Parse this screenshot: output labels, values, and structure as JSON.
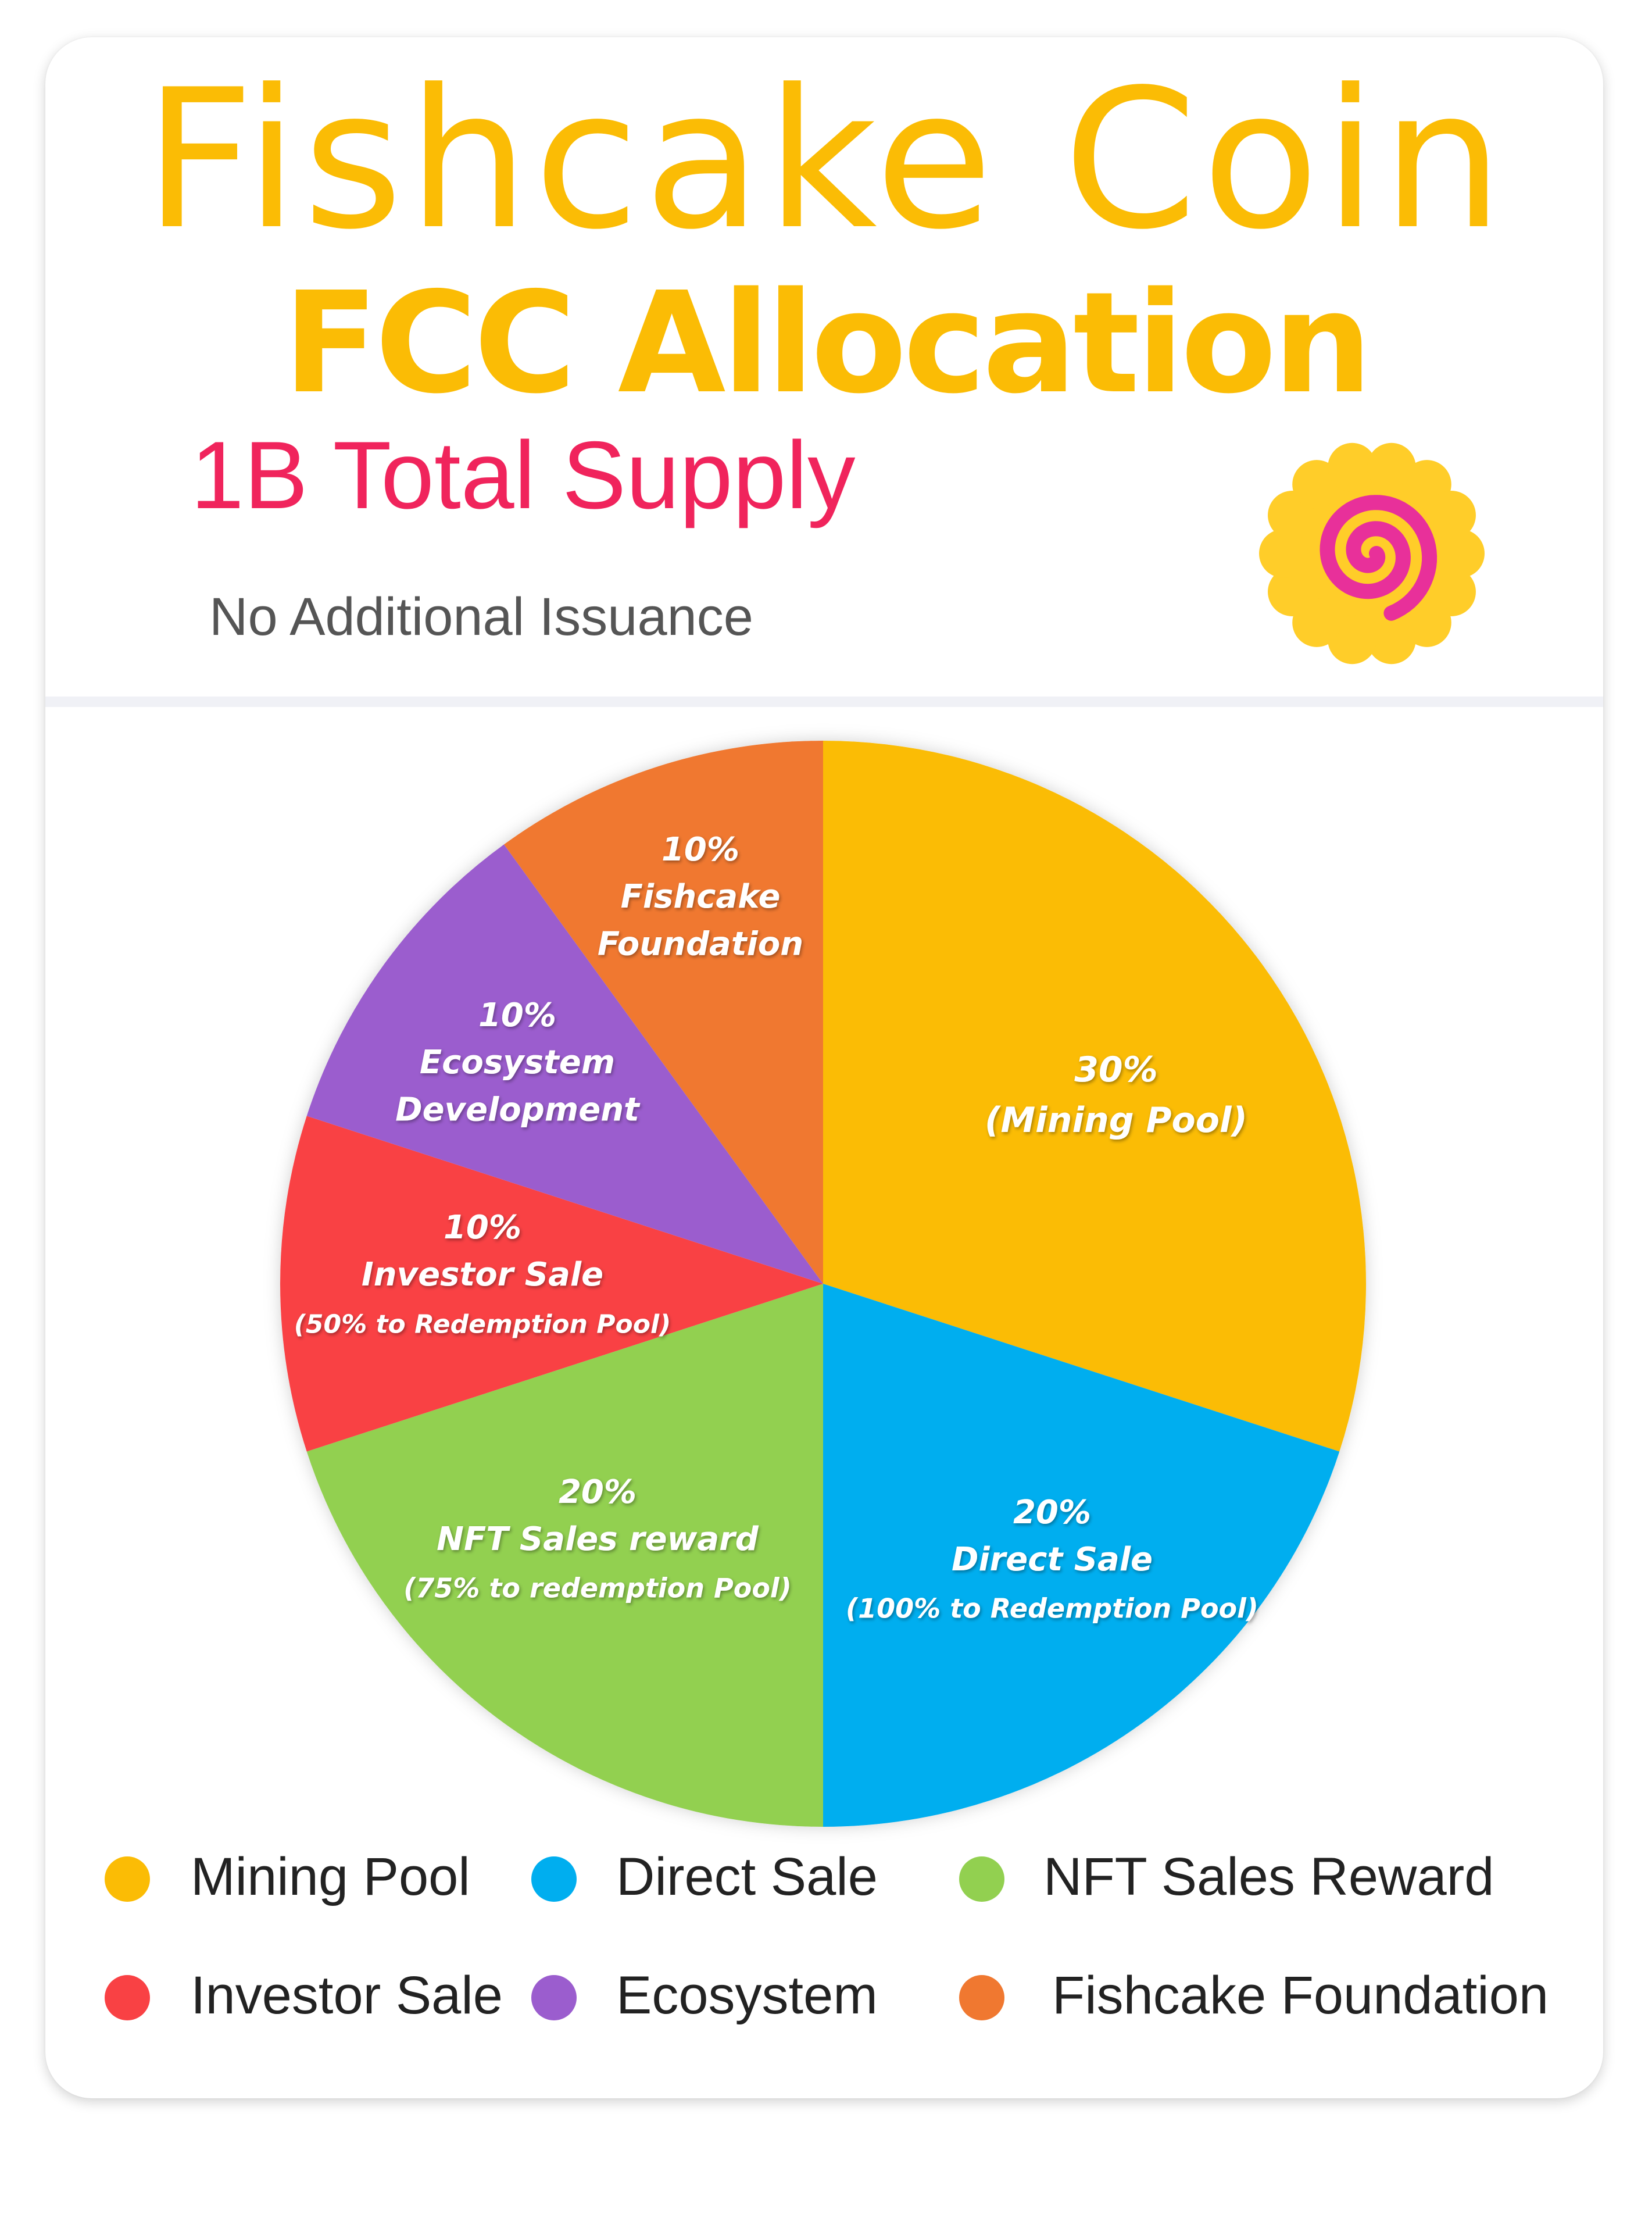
{
  "header": {
    "title": "Fishcake Coin",
    "subtitle": "FCC Allocation",
    "supply": "1B Total Supply",
    "issuance": "No Additional Issuance"
  },
  "colors": {
    "title": "#FBBC05",
    "supply": "#F0245C",
    "issuance": "#555555",
    "divider": "#F0F1F6",
    "logo_outer": "#FFCD29",
    "logo_spiral": "#E8309A"
  },
  "logo": {
    "icon": "fishcake-spiral-icon"
  },
  "chart_data": {
    "type": "pie",
    "start_angle_deg": 0,
    "direction": "clockwise",
    "slices": [
      {
        "name": "Mining Pool",
        "value": 30,
        "color": "#FBBC05",
        "label_lines": [
          "30%",
          "(Mining Pool)"
        ]
      },
      {
        "name": "Direct Sale",
        "value": 20,
        "color": "#00AEEF",
        "label_lines": [
          "20%",
          "Direct Sale",
          "(100% to Redemption Pool)"
        ]
      },
      {
        "name": "NFT Sales Reward",
        "value": 20,
        "color": "#92D050",
        "label_lines": [
          "20%",
          "NFT Sales reward",
          "(75% to redemption Pool)"
        ]
      },
      {
        "name": "Investor Sale",
        "value": 10,
        "color": "#F94144",
        "label_lines": [
          "10%",
          "Investor Sale",
          "(50% to Redemption Pool)"
        ]
      },
      {
        "name": "Ecosystem",
        "value": 10,
        "color": "#9B5DCE",
        "label_lines": [
          "10%",
          "Ecosystem",
          "Development"
        ]
      },
      {
        "name": "Fishcake Foundation",
        "value": 10,
        "color": "#F07830",
        "label_lines": [
          "10%",
          "Fishcake",
          "Foundation"
        ]
      }
    ],
    "legend": {
      "placement": "bottom",
      "entries": [
        "Mining Pool",
        "Direct Sale",
        "NFT Sales Reward",
        "Investor Sale",
        "Ecosystem",
        "Fishcake Foundation"
      ]
    }
  }
}
